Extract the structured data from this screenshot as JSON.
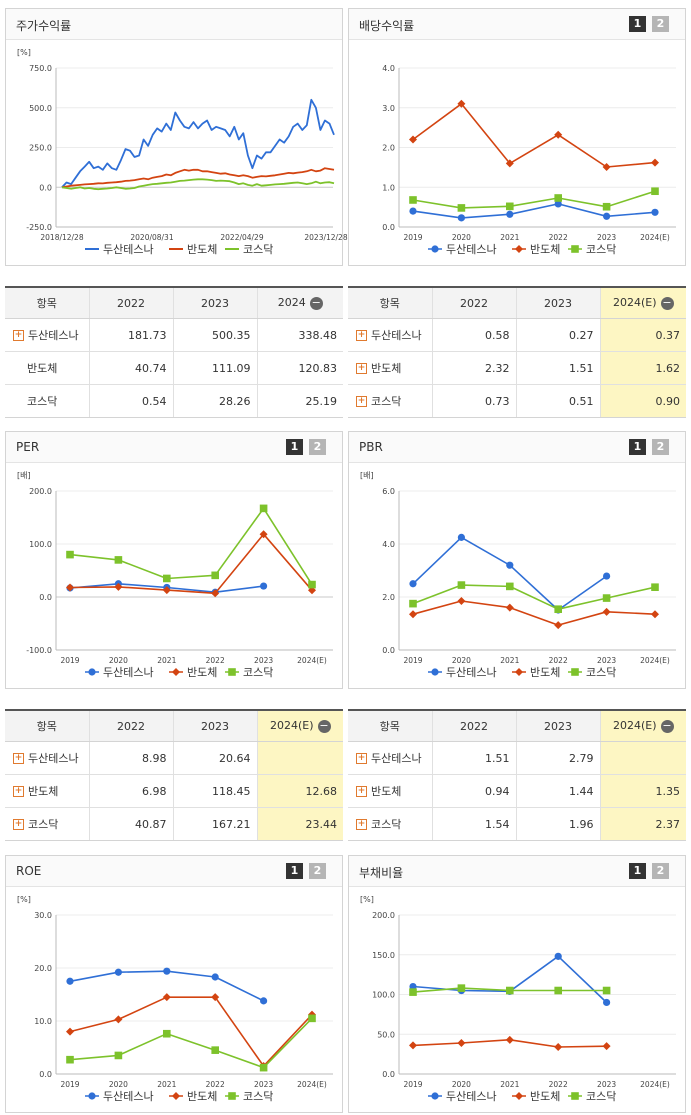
{
  "legend": [
    "두산테스나",
    "반도체",
    "코스닥"
  ],
  "colors": [
    "#2f6fd6",
    "#d34411",
    "#7dc22b"
  ],
  "panels": [
    {
      "id": "stock-return",
      "title": "주가수익률",
      "unit": "[%]",
      "buttons": [],
      "chart_data": {
        "type": "line",
        "title": "주가수익률",
        "ylim": [
          -250,
          750
        ],
        "yticks": [
          "-250.0",
          "0.0",
          "250.0",
          "500.0",
          "750.0"
        ],
        "xticks": [
          "2018/12/28",
          "2020/08/31",
          "2022/04/29",
          "2023/12/28"
        ],
        "markers": false,
        "series": [
          {
            "name": "두산테스나",
            "values": [
              0,
              30,
              20,
              60,
              100,
              130,
              160,
              120,
              130,
              110,
              150,
              120,
              110,
              170,
              240,
              230,
              190,
              200,
              300,
              260,
              330,
              370,
              350,
              400,
              360,
              470,
              420,
              380,
              370,
              410,
              370,
              400,
              420,
              360,
              380,
              370,
              360,
              320,
              380,
              300,
              340,
              200,
              120,
              200,
              180,
              220,
              220,
              260,
              300,
              280,
              320,
              380,
              400,
              360,
              390,
              550,
              500,
              360,
              420,
              400,
              330
            ]
          },
          {
            "name": "반도체",
            "values": [
              0,
              5,
              10,
              12,
              15,
              18,
              20,
              22,
              25,
              24,
              28,
              30,
              32,
              35,
              40,
              42,
              45,
              50,
              55,
              50,
              60,
              65,
              70,
              80,
              75,
              90,
              100,
              110,
              105,
              110,
              110,
              100,
              100,
              95,
              90,
              85,
              88,
              80,
              75,
              70,
              75,
              70,
              60,
              65,
              70,
              68,
              72,
              75,
              80,
              85,
              90,
              88,
              92,
              95,
              100,
              110,
              100,
              105,
              120,
              115,
              110
            ]
          },
          {
            "name": "코스닥",
            "values": [
              0,
              -5,
              -10,
              -5,
              0,
              -8,
              -5,
              -10,
              -12,
              -10,
              -8,
              -5,
              0,
              -5,
              -10,
              -8,
              -5,
              5,
              10,
              15,
              20,
              22,
              25,
              28,
              30,
              35,
              40,
              42,
              45,
              48,
              50,
              50,
              48,
              45,
              40,
              42,
              40,
              38,
              30,
              20,
              25,
              15,
              10,
              20,
              10,
              12,
              15,
              18,
              20,
              22,
              25,
              28,
              30,
              25,
              20,
              25,
              35,
              25,
              30,
              32,
              25
            ]
          }
        ]
      },
      "table": {
        "headers": [
          "항목",
          "2022",
          "2023",
          "2024"
        ],
        "header_minus": true,
        "highlight_last": false,
        "rows": [
          {
            "label": "두산테스나",
            "plus": true,
            "values": [
              "181.73",
              "500.35",
              "338.48"
            ]
          },
          {
            "label": "반도체",
            "plus": false,
            "values": [
              "40.74",
              "111.09",
              "120.83"
            ]
          },
          {
            "label": "코스닥",
            "plus": false,
            "values": [
              "0.54",
              "28.26",
              "25.19"
            ]
          }
        ]
      }
    },
    {
      "id": "dividend-yield",
      "title": "배당수익률",
      "unit": "",
      "buttons": [
        "1",
        "2"
      ],
      "chart_data": {
        "type": "line",
        "title": "배당수익률",
        "ylim": [
          0,
          4
        ],
        "yticks": [
          "0.0",
          "1.0",
          "2.0",
          "3.0",
          "4.0"
        ],
        "categories": [
          "2019",
          "2020",
          "2021",
          "2022",
          "2023",
          "2024(E)"
        ],
        "markers": true,
        "series": [
          {
            "name": "두산테스나",
            "values": [
              0.4,
              0.23,
              0.32,
              0.58,
              0.27,
              0.37
            ]
          },
          {
            "name": "반도체",
            "values": [
              2.2,
              3.1,
              1.6,
              2.32,
              1.51,
              1.62
            ]
          },
          {
            "name": "코스닥",
            "values": [
              0.68,
              0.48,
              0.52,
              0.73,
              0.51,
              0.9
            ]
          }
        ]
      },
      "table": {
        "headers": [
          "항목",
          "2022",
          "2023",
          "2024(E)"
        ],
        "header_minus": true,
        "highlight_last": true,
        "rows": [
          {
            "label": "두산테스나",
            "plus": true,
            "values": [
              "0.58",
              "0.27",
              "0.37"
            ]
          },
          {
            "label": "반도체",
            "plus": true,
            "values": [
              "2.32",
              "1.51",
              "1.62"
            ]
          },
          {
            "label": "코스닥",
            "plus": true,
            "values": [
              "0.73",
              "0.51",
              "0.90"
            ]
          }
        ]
      }
    },
    {
      "id": "per",
      "title": "PER",
      "unit": "[배]",
      "buttons": [
        "1",
        "2"
      ],
      "chart_data": {
        "type": "line",
        "title": "PER",
        "ylim": [
          -100,
          200
        ],
        "yticks": [
          "-100.0",
          "0.0",
          "100.0",
          "200.0"
        ],
        "categories": [
          "2019",
          "2020",
          "2021",
          "2022",
          "2023",
          "2024(E)"
        ],
        "markers": true,
        "series": [
          {
            "name": "두산테스나",
            "values": [
              17,
              25,
              18,
              8.98,
              20.64,
              null
            ]
          },
          {
            "name": "반도체",
            "values": [
              18,
              19,
              13,
              6.98,
              118.45,
              12.68
            ]
          },
          {
            "name": "코스닥",
            "values": [
              80,
              70,
              35,
              40.87,
              167.21,
              23.44
            ]
          }
        ]
      },
      "table": {
        "headers": [
          "항목",
          "2022",
          "2023",
          "2024(E)"
        ],
        "header_minus": true,
        "highlight_last": true,
        "rows": [
          {
            "label": "두산테스나",
            "plus": true,
            "values": [
              "8.98",
              "20.64",
              ""
            ]
          },
          {
            "label": "반도체",
            "plus": true,
            "values": [
              "6.98",
              "118.45",
              "12.68"
            ]
          },
          {
            "label": "코스닥",
            "plus": true,
            "values": [
              "40.87",
              "167.21",
              "23.44"
            ]
          }
        ]
      }
    },
    {
      "id": "pbr",
      "title": "PBR",
      "unit": "[배]",
      "buttons": [
        "1",
        "2"
      ],
      "chart_data": {
        "type": "line",
        "title": "PBR",
        "ylim": [
          0,
          6
        ],
        "yticks": [
          "0.0",
          "2.0",
          "4.0",
          "6.0"
        ],
        "categories": [
          "2019",
          "2020",
          "2021",
          "2022",
          "2023",
          "2024(E)"
        ],
        "markers": true,
        "series": [
          {
            "name": "두산테스나",
            "values": [
              2.5,
              4.25,
              3.2,
              1.51,
              2.79,
              null
            ]
          },
          {
            "name": "반도체",
            "values": [
              1.35,
              1.85,
              1.6,
              0.94,
              1.44,
              1.35
            ]
          },
          {
            "name": "코스닥",
            "values": [
              1.75,
              2.45,
              2.4,
              1.54,
              1.96,
              2.37
            ]
          }
        ]
      },
      "table": {
        "headers": [
          "항목",
          "2022",
          "2023",
          "2024(E)"
        ],
        "header_minus": true,
        "highlight_last": true,
        "rows": [
          {
            "label": "두산테스나",
            "plus": true,
            "values": [
              "1.51",
              "2.79",
              ""
            ]
          },
          {
            "label": "반도체",
            "plus": true,
            "values": [
              "0.94",
              "1.44",
              "1.35"
            ]
          },
          {
            "label": "코스닥",
            "plus": true,
            "values": [
              "1.54",
              "1.96",
              "2.37"
            ]
          }
        ]
      }
    },
    {
      "id": "roe",
      "title": "ROE",
      "unit": "[%]",
      "buttons": [
        "1",
        "2"
      ],
      "chart_data": {
        "type": "line",
        "title": "ROE",
        "ylim": [
          0,
          30
        ],
        "yticks": [
          "0.0",
          "10.0",
          "20.0",
          "30.0"
        ],
        "categories": [
          "2019",
          "2020",
          "2021",
          "2022",
          "2023",
          "2024(E)"
        ],
        "markers": true,
        "series": [
          {
            "name": "두산테스나",
            "values": [
              17.5,
              19.2,
              19.4,
              18.3,
              13.8,
              null
            ]
          },
          {
            "name": "반도체",
            "values": [
              8,
              10.3,
              14.5,
              14.5,
              1.5,
              11.2
            ]
          },
          {
            "name": "코스닥",
            "values": [
              2.7,
              3.5,
              7.6,
              4.5,
              1.2,
              10.5
            ]
          }
        ]
      },
      "table": null
    },
    {
      "id": "debt-ratio",
      "title": "부채비율",
      "unit": "[%]",
      "buttons": [
        "1",
        "2"
      ],
      "chart_data": {
        "type": "line",
        "title": "부채비율",
        "ylim": [
          0,
          200
        ],
        "yticks": [
          "0.0",
          "50.0",
          "100.0",
          "150.0",
          "200.0"
        ],
        "categories": [
          "2019",
          "2020",
          "2021",
          "2022",
          "2023",
          "2024(E)"
        ],
        "markers": true,
        "series": [
          {
            "name": "두산테스나",
            "values": [
              110,
              105,
              104,
              148,
              90,
              null
            ]
          },
          {
            "name": "반도체",
            "values": [
              36,
              39,
              43,
              34,
              35,
              null
            ]
          },
          {
            "name": "코스닥",
            "values": [
              103,
              108,
              105,
              105,
              105,
              null
            ]
          }
        ]
      },
      "table": null
    }
  ]
}
